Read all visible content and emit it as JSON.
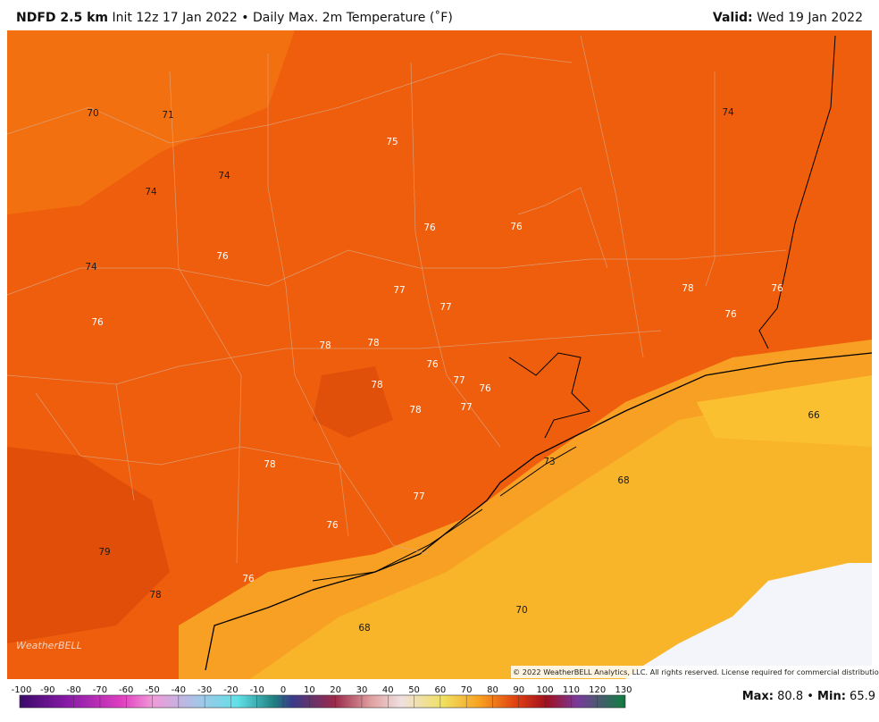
{
  "header": {
    "model": "NDFD 2.5 km",
    "init": "Init 12z 17 Jan 2022",
    "separator": "•",
    "product": "Daily Max. 2m Temperature (˚F)",
    "valid_label": "Valid:",
    "valid_date": "Wed 19 Jan 2022"
  },
  "map": {
    "labels": [
      70,
      71,
      74,
      74,
      75,
      74,
      76,
      76,
      74,
      76,
      77,
      77,
      78,
      76,
      76,
      76,
      78,
      78,
      76,
      77,
      76,
      78,
      78,
      77,
      66,
      73,
      78,
      68,
      77,
      76,
      79,
      76,
      78,
      70,
      68
    ],
    "logo": "WeatherBELL",
    "copyright": "© 2022 WeatherBELL Analytics, LLC. All rights reserved. License required for commercial distribution."
  },
  "colorbar": {
    "ticks": [
      -100,
      -90,
      -80,
      -70,
      -60,
      -50,
      -40,
      -30,
      -20,
      -10,
      0,
      10,
      20,
      30,
      40,
      50,
      60,
      70,
      80,
      90,
      100,
      110,
      120,
      130
    ]
  },
  "stats": {
    "max_label": "Max:",
    "max": 80.8,
    "separator": "•",
    "min_label": "Min:",
    "min": 65.9
  }
}
